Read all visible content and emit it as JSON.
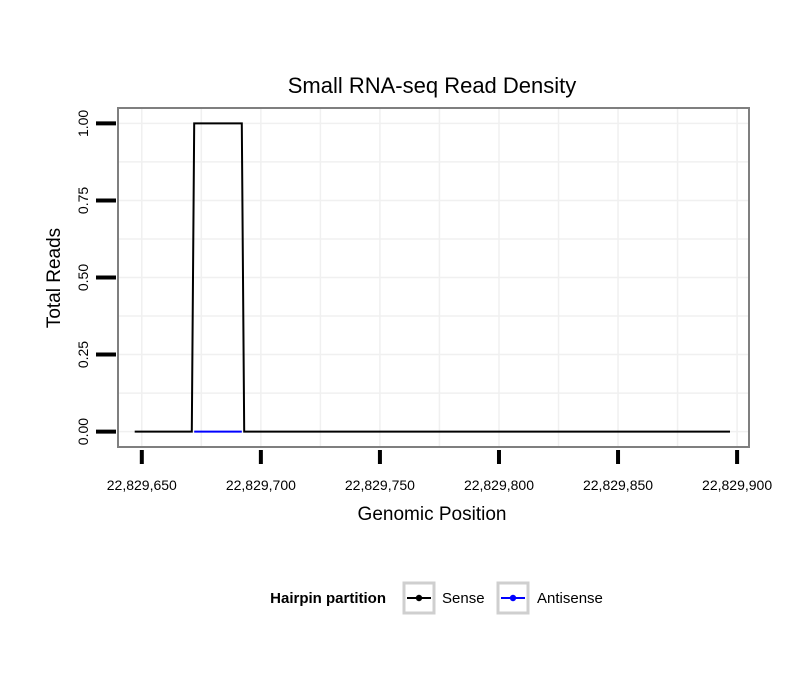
{
  "chart_data": {
    "type": "line",
    "title": "Small RNA-seq Read Density",
    "xlabel": "Genomic Position",
    "ylabel": "Total Reads",
    "xlim": [
      22829640,
      22829905
    ],
    "ylim": [
      -0.05,
      1.05
    ],
    "x_ticks": [
      22829650,
      22829700,
      22829750,
      22829800,
      22829850,
      22829900
    ],
    "x_tick_labels": [
      "22,829,650",
      "22,829,700",
      "22,829,750",
      "22,829,800",
      "22,829,850",
      "22,829,900"
    ],
    "y_ticks": [
      0,
      0.25,
      0.5,
      0.75,
      1.0
    ],
    "y_tick_labels": [
      "0.00",
      "0.25",
      "0.50",
      "0.75",
      "1.00"
    ],
    "grid": true,
    "legend": {
      "title": "Hairpin partition",
      "position": "bottom",
      "entries": [
        "Sense",
        "Antisense"
      ]
    },
    "series": [
      {
        "name": "Sense",
        "color": "#000000",
        "x": [
          22829647,
          22829671,
          22829672,
          22829692,
          22829693,
          22829897
        ],
        "y": [
          0,
          0,
          1,
          1,
          0,
          0
        ]
      },
      {
        "name": "Antisense",
        "color": "#0000ff",
        "x": [
          22829672,
          22829692
        ],
        "y": [
          0,
          0
        ]
      }
    ]
  }
}
